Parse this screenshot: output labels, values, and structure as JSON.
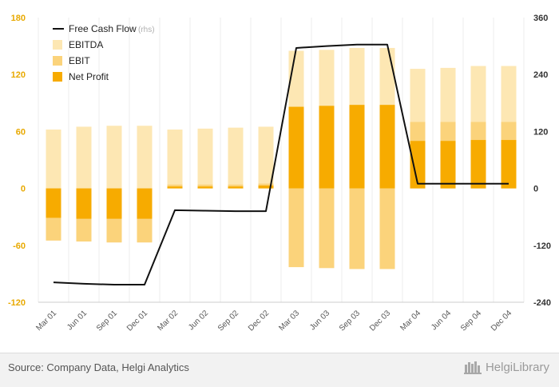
{
  "chart_data": {
    "type": "bar",
    "categories": [
      "Mar 01",
      "Jun 01",
      "Sep 01",
      "Dec 01",
      "Mar 02",
      "Jun 02",
      "Sep 02",
      "Dec 02",
      "Mar 03",
      "Jun 03",
      "Sep 03",
      "Dec 03",
      "Mar 04",
      "Jun 04",
      "Sep 04",
      "Dec 04"
    ],
    "series": [
      {
        "name": "EBITDA",
        "axis": "left",
        "color": "#fde7b3",
        "values": [
          62,
          65,
          66,
          66,
          62,
          63,
          64,
          65,
          145,
          146,
          148,
          148,
          126,
          127,
          129,
          129
        ]
      },
      {
        "name": "EBIT",
        "axis": "left",
        "color": "#fbd37b",
        "values": [
          -55,
          -56,
          -57,
          -57,
          4,
          4,
          4,
          5,
          -83,
          -84,
          -85,
          -85,
          70,
          70,
          70,
          70
        ]
      },
      {
        "name": "Net Profit",
        "axis": "left",
        "color": "#f7ab00",
        "values": [
          -31,
          -32,
          -32,
          -32,
          2,
          2,
          2,
          3,
          86,
          87,
          88,
          88,
          50,
          50,
          51,
          51
        ]
      },
      {
        "name": "Free Cash Flow",
        "rhs_label": "(rhs)",
        "axis": "right",
        "type": "line",
        "color": "#111111",
        "values": [
          -198,
          -201,
          -203,
          -203,
          -46,
          -47,
          -48,
          -48,
          296,
          300,
          303,
          303,
          10,
          10,
          10,
          10
        ]
      }
    ],
    "left_axis": {
      "min": -120,
      "max": 180,
      "ticks": [
        "-120",
        "-60",
        "0",
        "60",
        "120",
        "180"
      ]
    },
    "right_axis": {
      "min": -240,
      "max": 360,
      "ticks": [
        "-240",
        "-120",
        "0",
        "120",
        "240",
        "360"
      ]
    },
    "legend_position": "top-left",
    "grid": "vertical"
  },
  "footer": {
    "source": "Source: Company Data, Helgi Analytics",
    "brand": "HelgiLibrary"
  }
}
